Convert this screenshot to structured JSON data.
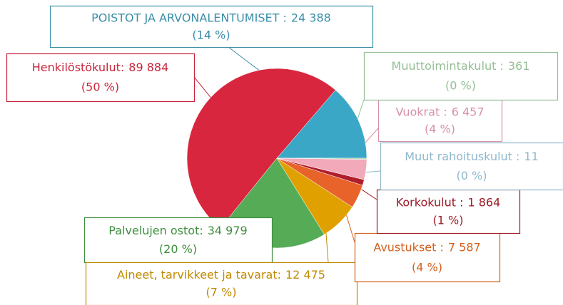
{
  "chart_data": {
    "type": "pie",
    "categories": [
      "POISTOT JA ARVONALENTUMISET :",
      "Henkilöstökulut:",
      "Palvelujen ostot:",
      "Aineet, tarvikkeet ja tavarat:",
      "Avustukset :",
      "Korkokulut :",
      "Muut rahoituskulut :",
      "Vuokrat :",
      "Muuttoimintakulut :"
    ],
    "values": [
      24388,
      89884,
      34979,
      12475,
      7587,
      1864,
      11,
      6457,
      361
    ],
    "value_labels": [
      "24 388",
      "89 884",
      "34 979",
      "12 475",
      "7 587",
      "1 864",
      "11",
      "6 457",
      "361"
    ],
    "percentages": [
      14,
      50,
      20,
      7,
      4,
      1,
      0,
      4,
      0
    ],
    "percentage_labels": [
      "(14 %)",
      "(50 %)",
      "(20 %)",
      "(7 %)",
      "(4 %)",
      "(1 %)",
      "(0 %)",
      "(4 %)",
      "(0 %)"
    ],
    "colors": [
      "#3ba7c6",
      "#d9263f",
      "#56ab56",
      "#e0a100",
      "#e8632a",
      "#b01f2c",
      "#a6cbdc",
      "#f2a9ba",
      "#a9d1a9"
    ],
    "label_colors": [
      "#3a8ea8",
      "#c8243a",
      "#3f8f3f",
      "#c08a00",
      "#d2611f",
      "#9e1c28",
      "#8fb8cc",
      "#d890a4",
      "#94bf94"
    ]
  }
}
